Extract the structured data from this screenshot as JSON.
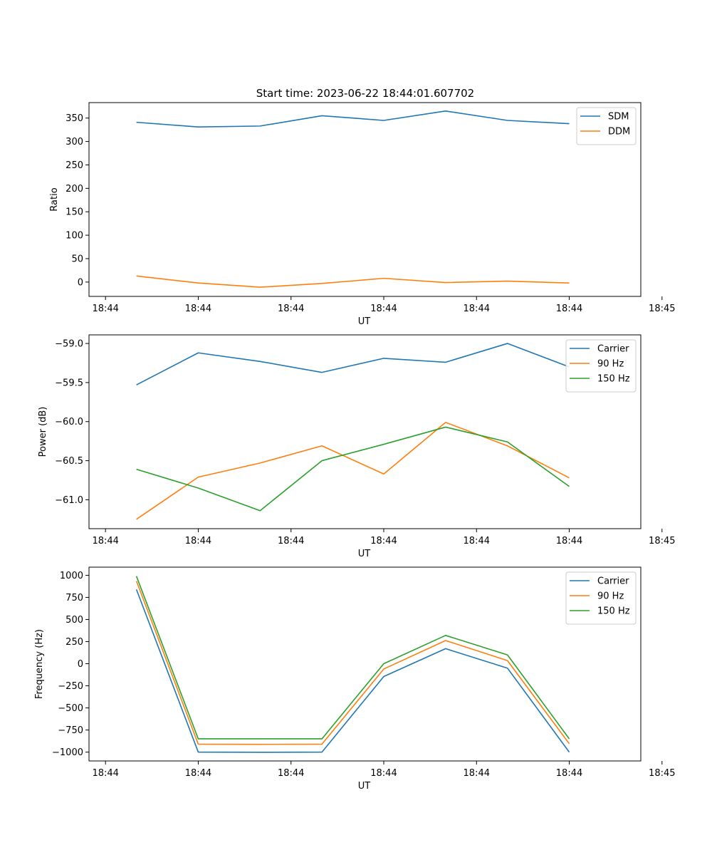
{
  "figure": {
    "title": "Start time: 2023-06-22 18:44:01.607702"
  },
  "colors": {
    "blue": "#1f77b4",
    "orange": "#ff7f0e",
    "green": "#2ca02c"
  },
  "chart_data": [
    {
      "type": "line",
      "title": "Start time: 2023-06-22 18:44:01.607702",
      "xlabel": "UT",
      "ylabel": "Ratio",
      "x": [
        1,
        2,
        3,
        4,
        5,
        6,
        7,
        8
      ],
      "xlim": [
        0.233,
        9.157
      ],
      "xticks": [
        0.5,
        2.0,
        3.5,
        5.0,
        6.5,
        8.0,
        9.5
      ],
      "xtick_labels": [
        "18:44",
        "18:44",
        "18:44",
        "18:44",
        "18:44",
        "18:44",
        "18:45"
      ],
      "ylim": [
        -30.6,
        383
      ],
      "yticks": [
        0,
        50,
        100,
        150,
        200,
        250,
        300,
        350
      ],
      "ytick_labels": [
        "0",
        "50",
        "100",
        "150",
        "200",
        "250",
        "300",
        "350"
      ],
      "legend_position": "top-right",
      "series": [
        {
          "name": "SDM",
          "color": "blue",
          "values": [
            341,
            331,
            333,
            355,
            345,
            365,
            345,
            338
          ]
        },
        {
          "name": "DDM",
          "color": "orange",
          "values": [
            13,
            -2,
            -11,
            -3,
            8,
            -1,
            2,
            -2
          ]
        }
      ]
    },
    {
      "type": "line",
      "title": "",
      "xlabel": "UT",
      "ylabel": "Power (dB)",
      "x": [
        1,
        2,
        3,
        4,
        5,
        6,
        7,
        8
      ],
      "xlim": [
        0.233,
        9.157
      ],
      "xticks": [
        0.5,
        2.0,
        3.5,
        5.0,
        6.5,
        8.0,
        9.5
      ],
      "xtick_labels": [
        "18:44",
        "18:44",
        "18:44",
        "18:44",
        "18:44",
        "18:44",
        "18:45"
      ],
      "ylim": [
        -61.37,
        -58.89
      ],
      "yticks": [
        -59.0,
        -59.5,
        -60.0,
        -60.5,
        -61.0
      ],
      "ytick_labels": [
        "−59.0",
        "−59.5",
        "−60.0",
        "−60.5",
        "−61.0"
      ],
      "legend_position": "top-right",
      "series": [
        {
          "name": "Carrier",
          "color": "blue",
          "values": [
            -59.53,
            -59.12,
            -59.23,
            -59.37,
            -59.19,
            -59.24,
            -59.0,
            -59.3
          ]
        },
        {
          "name": "90 Hz",
          "color": "orange",
          "values": [
            -61.25,
            -60.71,
            -60.53,
            -60.31,
            -60.67,
            -60.01,
            -60.31,
            -60.72
          ]
        },
        {
          "name": "150 Hz",
          "color": "green",
          "values": [
            -60.61,
            -60.85,
            -61.14,
            -60.5,
            -60.29,
            -60.07,
            -60.26,
            -60.83
          ]
        }
      ]
    },
    {
      "type": "line",
      "title": "",
      "xlabel": "UT",
      "ylabel": "Frequency (Hz)",
      "x": [
        1,
        2,
        3,
        4,
        5,
        6,
        7,
        8
      ],
      "xlim": [
        0.233,
        9.157
      ],
      "xticks": [
        0.5,
        2.0,
        3.5,
        5.0,
        6.5,
        8.0,
        9.5
      ],
      "xtick_labels": [
        "18:44",
        "18:44",
        "18:44",
        "18:44",
        "18:44",
        "18:44",
        "18:45"
      ],
      "ylim": [
        -1100,
        1092
      ],
      "yticks": [
        1000,
        750,
        500,
        250,
        0,
        -250,
        -500,
        -750,
        -1000
      ],
      "ytick_labels": [
        "1000",
        "750",
        "500",
        "250",
        "0",
        "−250",
        "−500",
        "−750",
        "−1000"
      ],
      "legend_position": "top-right",
      "series": [
        {
          "name": "Carrier",
          "color": "blue",
          "values": [
            840,
            -1000,
            -1002,
            -1000,
            -145,
            170,
            -50,
            -1000
          ]
        },
        {
          "name": "90 Hz",
          "color": "orange",
          "values": [
            935,
            -910,
            -912,
            -910,
            -60,
            262,
            35,
            -905
          ]
        },
        {
          "name": "150 Hz",
          "color": "green",
          "values": [
            990,
            -850,
            -850,
            -850,
            0,
            320,
            100,
            -850
          ]
        }
      ]
    }
  ]
}
